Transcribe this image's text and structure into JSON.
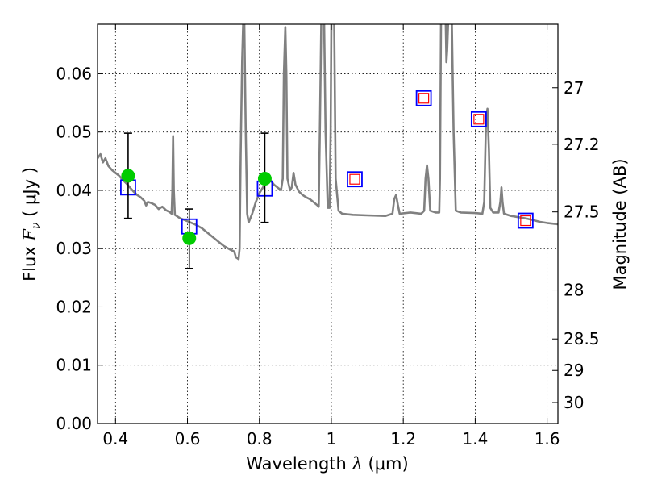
{
  "chart_data": {
    "type": "line",
    "title": "",
    "xlabel": "Wavelength  λ (μm)",
    "xlabel_parts": {
      "prefix": "Wavelength  ",
      "symbol": "λ",
      "suffix": " (μm)"
    },
    "ylabel": "Flux  Fν  ( μJy )",
    "ylabel_parts": {
      "prefix": "Flux  ",
      "symbol": "F",
      "subscript": "ν",
      "suffix": "  ( μJy )"
    },
    "ylabel_right": "Magnitude (AB)",
    "xlim": [
      0.35,
      1.63
    ],
    "ylim": [
      0.0,
      0.0685
    ],
    "grid": true,
    "x_ticks": [
      0.4,
      0.6,
      0.8,
      1.0,
      1.2,
      1.4,
      1.6
    ],
    "x_tick_labels": [
      "0.4",
      "0.6",
      "0.8",
      "1",
      "1.2",
      "1.4",
      "1.6"
    ],
    "y_ticks": [
      0.0,
      0.01,
      0.02,
      0.03,
      0.04,
      0.05,
      0.06
    ],
    "y_tick_labels": [
      "0.00",
      "0.01",
      "0.02",
      "0.03",
      "0.04",
      "0.05",
      "0.06"
    ],
    "right_ticks": [
      {
        "label": "27",
        "flux": 0.0576
      },
      {
        "label": "27.2",
        "flux": 0.0479
      },
      {
        "label": "27.5",
        "flux": 0.0363
      },
      {
        "label": "28",
        "flux": 0.0229
      },
      {
        "label": "28.5",
        "flux": 0.0145
      },
      {
        "label": "29",
        "flux": 0.0091
      },
      {
        "label": "30",
        "flux": 0.0036
      }
    ],
    "series": [
      {
        "kind": "model-spectrum",
        "color": "#808080",
        "points": [
          [
            0.35,
            0.0455
          ],
          [
            0.358,
            0.0462
          ],
          [
            0.365,
            0.0448
          ],
          [
            0.372,
            0.0455
          ],
          [
            0.38,
            0.0442
          ],
          [
            0.39,
            0.0435
          ],
          [
            0.4,
            0.043
          ],
          [
            0.41,
            0.0425
          ],
          [
            0.42,
            0.0418
          ],
          [
            0.43,
            0.0412
          ],
          [
            0.44,
            0.0405
          ],
          [
            0.45,
            0.0398
          ],
          [
            0.46,
            0.0392
          ],
          [
            0.47,
            0.0388
          ],
          [
            0.48,
            0.0382
          ],
          [
            0.485,
            0.0374
          ],
          [
            0.49,
            0.038
          ],
          [
            0.5,
            0.0378
          ],
          [
            0.51,
            0.0375
          ],
          [
            0.52,
            0.0368
          ],
          [
            0.53,
            0.0372
          ],
          [
            0.54,
            0.0366
          ],
          [
            0.55,
            0.0363
          ],
          [
            0.556,
            0.036
          ],
          [
            0.558,
            0.04
          ],
          [
            0.56,
            0.0493
          ],
          [
            0.562,
            0.04
          ],
          [
            0.565,
            0.0358
          ],
          [
            0.58,
            0.0352
          ],
          [
            0.6,
            0.0347
          ],
          [
            0.62,
            0.0342
          ],
          [
            0.64,
            0.0335
          ],
          [
            0.66,
            0.0325
          ],
          [
            0.68,
            0.0315
          ],
          [
            0.7,
            0.0305
          ],
          [
            0.72,
            0.0298
          ],
          [
            0.73,
            0.0295
          ],
          [
            0.735,
            0.0285
          ],
          [
            0.742,
            0.0282
          ],
          [
            0.745,
            0.03
          ],
          [
            0.748,
            0.046
          ],
          [
            0.752,
            0.062
          ],
          [
            0.755,
            0.069
          ],
          [
            0.758,
            0.069
          ],
          [
            0.762,
            0.05
          ],
          [
            0.766,
            0.036
          ],
          [
            0.77,
            0.0345
          ],
          [
            0.78,
            0.036
          ],
          [
            0.79,
            0.038
          ],
          [
            0.8,
            0.0395
          ],
          [
            0.81,
            0.0405
          ],
          [
            0.82,
            0.0412
          ],
          [
            0.83,
            0.0418
          ],
          [
            0.84,
            0.041
          ],
          [
            0.85,
            0.0405
          ],
          [
            0.86,
            0.04
          ],
          [
            0.865,
            0.042
          ],
          [
            0.868,
            0.06
          ],
          [
            0.872,
            0.068
          ],
          [
            0.875,
            0.06
          ],
          [
            0.878,
            0.042
          ],
          [
            0.885,
            0.04
          ],
          [
            0.89,
            0.0405
          ],
          [
            0.895,
            0.043
          ],
          [
            0.9,
            0.041
          ],
          [
            0.91,
            0.0398
          ],
          [
            0.92,
            0.0392
          ],
          [
            0.93,
            0.0388
          ],
          [
            0.94,
            0.0385
          ],
          [
            0.95,
            0.038
          ],
          [
            0.96,
            0.0375
          ],
          [
            0.965,
            0.0372
          ],
          [
            0.968,
            0.05
          ],
          [
            0.972,
            0.069
          ],
          [
            0.98,
            0.069
          ],
          [
            0.984,
            0.05
          ],
          [
            0.99,
            0.037
          ],
          [
            0.995,
            0.037
          ],
          [
            0.998,
            0.05
          ],
          [
            1.0,
            0.069
          ],
          [
            1.008,
            0.069
          ],
          [
            1.012,
            0.042
          ],
          [
            1.02,
            0.0365
          ],
          [
            1.03,
            0.036
          ],
          [
            1.06,
            0.0358
          ],
          [
            1.1,
            0.0357
          ],
          [
            1.15,
            0.0356
          ],
          [
            1.17,
            0.036
          ],
          [
            1.175,
            0.0385
          ],
          [
            1.18,
            0.0392
          ],
          [
            1.185,
            0.0375
          ],
          [
            1.19,
            0.036
          ],
          [
            1.22,
            0.0362
          ],
          [
            1.25,
            0.036
          ],
          [
            1.258,
            0.0365
          ],
          [
            1.262,
            0.042
          ],
          [
            1.266,
            0.0443
          ],
          [
            1.27,
            0.042
          ],
          [
            1.275,
            0.0365
          ],
          [
            1.29,
            0.0362
          ],
          [
            1.3,
            0.0362
          ],
          [
            1.302,
            0.042
          ],
          [
            1.305,
            0.069
          ],
          [
            1.318,
            0.069
          ],
          [
            1.32,
            0.062
          ],
          [
            1.322,
            0.064
          ],
          [
            1.325,
            0.069
          ],
          [
            1.335,
            0.069
          ],
          [
            1.34,
            0.05
          ],
          [
            1.346,
            0.0365
          ],
          [
            1.36,
            0.0362
          ],
          [
            1.4,
            0.0361
          ],
          [
            1.42,
            0.036
          ],
          [
            1.425,
            0.038
          ],
          [
            1.43,
            0.052
          ],
          [
            1.434,
            0.054
          ],
          [
            1.438,
            0.047
          ],
          [
            1.442,
            0.037
          ],
          [
            1.45,
            0.0362
          ],
          [
            1.465,
            0.0362
          ],
          [
            1.47,
            0.038
          ],
          [
            1.473,
            0.0405
          ],
          [
            1.476,
            0.038
          ],
          [
            1.48,
            0.036
          ],
          [
            1.5,
            0.0356
          ],
          [
            1.52,
            0.0354
          ],
          [
            1.54,
            0.0352
          ],
          [
            1.56,
            0.0349
          ],
          [
            1.58,
            0.0346
          ],
          [
            1.6,
            0.0344
          ],
          [
            1.63,
            0.0342
          ]
        ]
      },
      {
        "kind": "model-photometry",
        "name": "",
        "marker": "square",
        "color": "#0000ff",
        "points": [
          [
            0.435,
            0.0405
          ],
          [
            0.605,
            0.0338
          ],
          [
            0.815,
            0.0403
          ],
          [
            1.065,
            0.0419
          ],
          [
            1.257,
            0.0558
          ],
          [
            1.41,
            0.0522
          ],
          [
            1.54,
            0.0348
          ]
        ]
      },
      {
        "kind": "observed-photometry",
        "name": "",
        "marker": "square-small",
        "color": "#ff0000",
        "points": [
          [
            1.065,
            0.0419
          ],
          [
            1.257,
            0.0558
          ],
          [
            1.41,
            0.0522
          ],
          [
            1.54,
            0.0348
          ]
        ]
      },
      {
        "kind": "observed-photometry",
        "name": "",
        "marker": "circle",
        "color": "#00cc00",
        "points": [
          {
            "x": 0.435,
            "y": 0.0425,
            "yerr_low": 0.0352,
            "yerr_high": 0.0498
          },
          {
            "x": 0.605,
            "y": 0.0318,
            "yerr_low": 0.0266,
            "yerr_high": 0.0368
          },
          {
            "x": 0.815,
            "y": 0.042,
            "yerr_low": 0.0345,
            "yerr_high": 0.0498
          }
        ]
      }
    ]
  }
}
